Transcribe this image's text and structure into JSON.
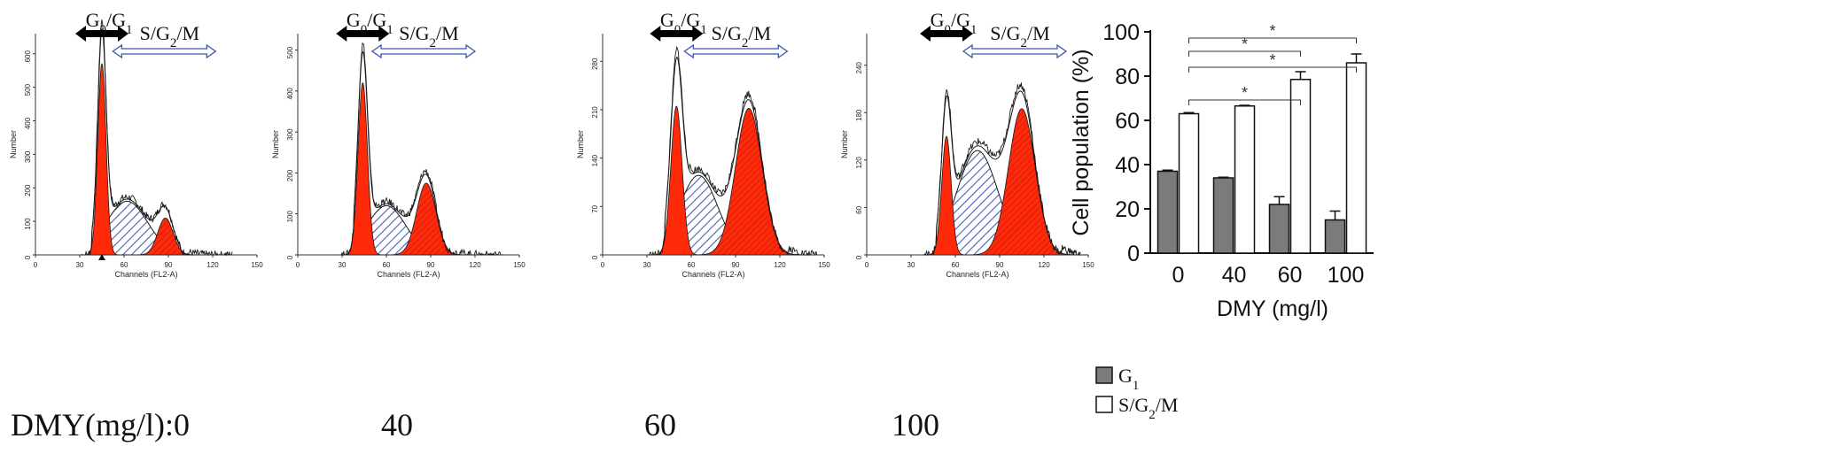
{
  "histograms": [
    {
      "dose_label": "0",
      "y_axis_label": "Number",
      "y_ticks": [
        "0",
        "100",
        "200",
        "300",
        "400",
        "500",
        "600"
      ],
      "y_max": 660,
      "x_axis_label": "Channels (FL2-A)",
      "x_ticks": [
        "0",
        "30",
        "60",
        "90",
        "120",
        "150"
      ],
      "g0g1_label": "G0/G1",
      "sg2m_label": "S/G2/M",
      "g1_peak": {
        "center": 45,
        "sigma": 2.8,
        "height": 570
      },
      "s_phase": {
        "center": 62,
        "sigma": 14,
        "height": 160,
        "from": 38,
        "to": 98
      },
      "g2_peak": {
        "center": 88,
        "sigma": 5.2,
        "height": 110
      },
      "has_marker": true
    },
    {
      "dose_label": "40",
      "y_axis_label": "Number",
      "y_ticks": [
        "0",
        "100",
        "200",
        "300",
        "400",
        "500"
      ],
      "y_max": 540,
      "x_axis_label": "Channels (FL2-A)",
      "x_ticks": [
        "0",
        "30",
        "60",
        "90",
        "120",
        "150"
      ],
      "g0g1_label": "G0/G1",
      "sg2m_label": "S/G2/M",
      "g1_peak": {
        "center": 44,
        "sigma": 3.2,
        "height": 420
      },
      "s_phase": {
        "center": 60,
        "sigma": 13,
        "height": 120,
        "from": 38,
        "to": 98
      },
      "g2_peak": {
        "center": 87,
        "sigma": 6.5,
        "height": 175
      },
      "has_marker": false
    },
    {
      "dose_label": "60",
      "y_axis_label": "Number",
      "y_ticks": [
        "0",
        "70",
        "140",
        "210",
        "280"
      ],
      "y_max": 320,
      "x_axis_label": "Channels (FL2-A)",
      "x_ticks": [
        "0",
        "30",
        "60",
        "90",
        "120",
        "150"
      ],
      "g0g1_label": "G0/G1",
      "sg2m_label": "S/G2/M",
      "g1_peak": {
        "center": 50,
        "sigma": 3.8,
        "height": 215
      },
      "s_phase": {
        "center": 65,
        "sigma": 13,
        "height": 115,
        "from": 42,
        "to": 105
      },
      "g2_peak": {
        "center": 99,
        "sigma": 9,
        "height": 212
      },
      "has_marker": false
    },
    {
      "dose_label": "100",
      "y_axis_label": "Number",
      "y_ticks": [
        "0",
        "60",
        "120",
        "180",
        "240"
      ],
      "y_max": 280,
      "x_axis_label": "Channels (FL2-A)",
      "x_ticks": [
        "0",
        "30",
        "60",
        "90",
        "120",
        "150"
      ],
      "g0g1_label": "G0/G1",
      "sg2m_label": "S/G2/M",
      "g1_peak": {
        "center": 54,
        "sigma": 3.2,
        "height": 150
      },
      "s_phase": {
        "center": 75,
        "sigma": 14,
        "height": 132,
        "from": 47,
        "to": 112
      },
      "g2_peak": {
        "center": 105,
        "sigma": 9,
        "height": 185
      },
      "has_marker": false
    }
  ],
  "dose_row_label": "DMY(mg/l):",
  "chart_data": {
    "type": "bar",
    "categories": [
      "0",
      "40",
      "60",
      "100"
    ],
    "series": [
      {
        "name": "G1",
        "values": [
          37,
          34,
          22,
          15
        ],
        "errors": [
          0.5,
          0.3,
          3.5,
          4.0
        ],
        "color": "#7b7b7b"
      },
      {
        "name": "S/G2/M",
        "values": [
          63,
          66.5,
          78.5,
          86
        ],
        "errors": [
          0.5,
          0.3,
          3.5,
          4.0
        ],
        "color": "#ffffff"
      }
    ],
    "ylabel": "Cell population (%)",
    "xlabel": "DMY (mg/l)",
    "ylim": [
      0,
      100
    ],
    "y_ticks": [
      "0",
      "20",
      "40",
      "60",
      "80",
      "100"
    ],
    "significance": [
      {
        "from": "0",
        "to": "60",
        "label": "*"
      },
      {
        "from": "0",
        "to": "100",
        "label": "*"
      },
      {
        "from": "0",
        "to": "60",
        "label": "*"
      },
      {
        "from": "0",
        "to": "100",
        "label": "*"
      }
    ],
    "legend_position": "bottom-left"
  },
  "colors": {
    "peak_red": "#ff2a0a",
    "hatch_blue": "#4a5fb0",
    "outline": "#1a1a1a",
    "axis": "#333333",
    "bar_gray": "#7b7b7b"
  }
}
